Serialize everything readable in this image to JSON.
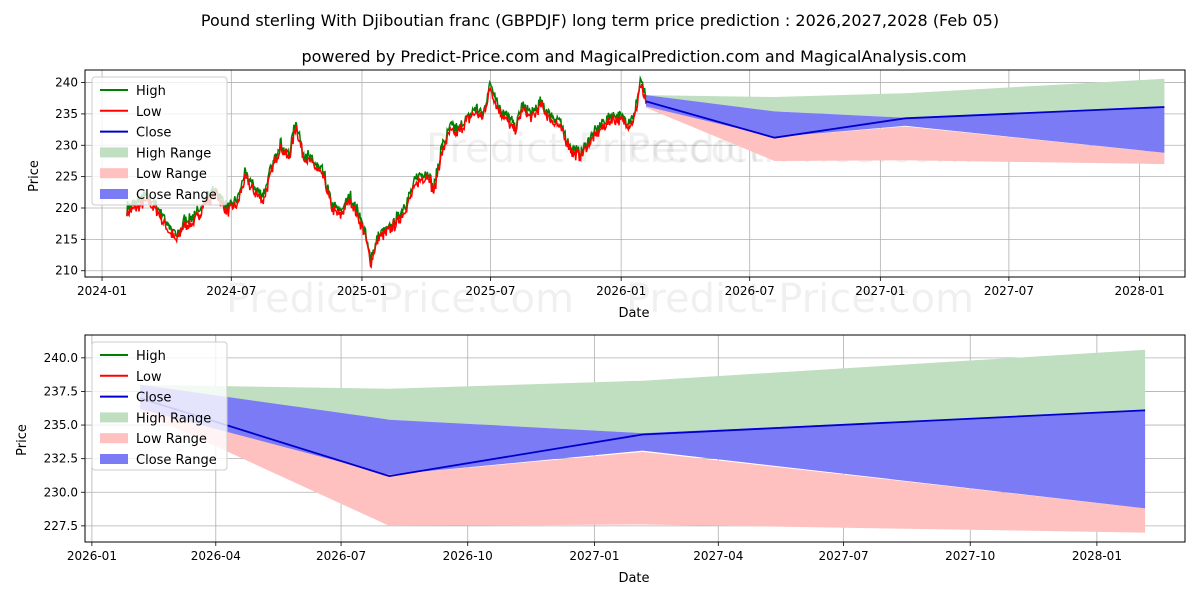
{
  "title": "Pound sterling With Djiboutian franc (GBPDJF) long term price prediction : 2026,2027,2028 (Feb 05)",
  "subtitle": "powered by Predict-Price.com and MagicalPrediction.com and MagicalAnalysis.com",
  "watermark": "Predict-Price.com",
  "colors": {
    "high": "#008000",
    "low": "#ff0000",
    "close": "#0000cc",
    "high_range": "#c0dfc0",
    "low_range": "#ffc0c0",
    "close_range": "#7b7bf5"
  },
  "legend": [
    "High",
    "Low",
    "Close",
    "High Range",
    "Low Range",
    "Close Range"
  ],
  "chart_data": [
    {
      "type": "line",
      "panel": "top",
      "xlabel": "Date",
      "ylabel": "Price",
      "xlim": [
        "2023-12-08",
        "2028-03-05"
      ],
      "ylim": [
        209,
        242
      ],
      "xticks": [
        {
          "date": "2024-01-01",
          "label": "2024-01"
        },
        {
          "date": "2024-07-01",
          "label": "2024-07"
        },
        {
          "date": "2025-01-01",
          "label": "2025-01"
        },
        {
          "date": "2025-07-01",
          "label": "2025-07"
        },
        {
          "date": "2026-01-01",
          "label": "2026-01"
        },
        {
          "date": "2026-07-01",
          "label": "2026-07"
        },
        {
          "date": "2027-01-01",
          "label": "2027-01"
        },
        {
          "date": "2027-07-01",
          "label": "2027-07"
        },
        {
          "date": "2028-01-01",
          "label": "2028-01"
        }
      ],
      "yticks": [
        210,
        215,
        220,
        225,
        230,
        235,
        240
      ],
      "history_anchors": [
        [
          "2024-02-05",
          219.5
        ],
        [
          "2024-02-20",
          220.5
        ],
        [
          "2024-03-05",
          221.5
        ],
        [
          "2024-03-20",
          219.5
        ],
        [
          "2024-04-05",
          216.5
        ],
        [
          "2024-04-15",
          215.0
        ],
        [
          "2024-04-25",
          217.5
        ],
        [
          "2024-05-10",
          218.0
        ],
        [
          "2024-05-25",
          221.0
        ],
        [
          "2024-06-10",
          222.5
        ],
        [
          "2024-06-25",
          219.5
        ],
        [
          "2024-07-10",
          221.0
        ],
        [
          "2024-07-20",
          225.0
        ],
        [
          "2024-08-05",
          222.5
        ],
        [
          "2024-08-15",
          221.5
        ],
        [
          "2024-08-28",
          226.5
        ],
        [
          "2024-09-08",
          230.0
        ],
        [
          "2024-09-20",
          228.0
        ],
        [
          "2024-09-30",
          233.5
        ],
        [
          "2024-10-10",
          228.5
        ],
        [
          "2024-10-25",
          227.0
        ],
        [
          "2024-11-08",
          225.0
        ],
        [
          "2024-11-20",
          220.0
        ],
        [
          "2024-12-01",
          219.0
        ],
        [
          "2024-12-15",
          221.5
        ],
        [
          "2024-12-28",
          218.5
        ],
        [
          "2025-01-05",
          216.0
        ],
        [
          "2025-01-13",
          211.5
        ],
        [
          "2025-01-25",
          215.5
        ],
        [
          "2025-02-08",
          216.5
        ],
        [
          "2025-02-20",
          218.0
        ],
        [
          "2025-03-05",
          220.5
        ],
        [
          "2025-03-20",
          224.5
        ],
        [
          "2025-04-05",
          225.5
        ],
        [
          "2025-04-12",
          222.5
        ],
        [
          "2025-04-22",
          228.5
        ],
        [
          "2025-05-05",
          232.5
        ],
        [
          "2025-05-15",
          232.0
        ],
        [
          "2025-05-28",
          234.0
        ],
        [
          "2025-06-10",
          235.5
        ],
        [
          "2025-06-20",
          234.5
        ],
        [
          "2025-07-01",
          239.5
        ],
        [
          "2025-07-12",
          236.0
        ],
        [
          "2025-07-25",
          234.0
        ],
        [
          "2025-08-05",
          232.5
        ],
        [
          "2025-08-15",
          236.0
        ],
        [
          "2025-08-28",
          234.5
        ],
        [
          "2025-09-10",
          236.5
        ],
        [
          "2025-09-22",
          234.5
        ],
        [
          "2025-10-05",
          233.5
        ],
        [
          "2025-10-15",
          231.0
        ],
        [
          "2025-10-25",
          229.0
        ],
        [
          "2025-11-05",
          228.5
        ],
        [
          "2025-11-20",
          231.0
        ],
        [
          "2025-12-05",
          233.0
        ],
        [
          "2025-12-20",
          234.5
        ],
        [
          "2026-01-05",
          234.0
        ],
        [
          "2026-01-12",
          233.5
        ],
        [
          "2026-01-20",
          234.5
        ],
        [
          "2026-01-28",
          240.0
        ],
        [
          "2026-02-05",
          237.0
        ]
      ],
      "history_noise_seed": 7
    },
    {
      "type": "area",
      "panel": "bottom",
      "xlabel": "Date",
      "ylabel": "Price",
      "xlim": [
        "2025-12-27",
        "2028-03-05"
      ],
      "ylim": [
        226.3,
        241.7
      ],
      "xticks": [
        {
          "date": "2026-01-01",
          "label": "2026-01"
        },
        {
          "date": "2026-04-01",
          "label": "2026-04"
        },
        {
          "date": "2026-07-01",
          "label": "2026-07"
        },
        {
          "date": "2026-10-01",
          "label": "2026-10"
        },
        {
          "date": "2027-01-01",
          "label": "2027-01"
        },
        {
          "date": "2027-04-01",
          "label": "2027-04"
        },
        {
          "date": "2027-07-01",
          "label": "2027-07"
        },
        {
          "date": "2027-10-01",
          "label": "2027-10"
        },
        {
          "date": "2028-01-01",
          "label": "2028-01"
        }
      ],
      "yticks": [
        227.5,
        230.0,
        232.5,
        235.0,
        237.5,
        240.0
      ],
      "ytick_labels": [
        "227.5",
        "230.0",
        "232.5",
        "235.0",
        "237.5",
        "240.0"
      ]
    }
  ],
  "forecast": {
    "dates": [
      "2026-02-05",
      "2026-08-05",
      "2027-02-05",
      "2028-02-05"
    ],
    "close": [
      237.0,
      231.2,
      234.3,
      236.1
    ],
    "high_range": {
      "upper_dates": [
        "2026-02-05",
        "2026-08-05",
        "2027-02-05",
        "2028-02-05"
      ],
      "upper": [
        238.0,
        237.7,
        238.3,
        240.6
      ],
      "lower_dates": [
        "2026-02-05",
        "2026-08-05",
        "2027-02-05",
        "2028-02-05"
      ],
      "lower": [
        237.0,
        235.4,
        234.4,
        236.1
      ]
    },
    "low_range": {
      "upper_dates": [
        "2026-02-05",
        "2026-08-05",
        "2027-02-05",
        "2028-02-05"
      ],
      "upper": [
        236.8,
        231.3,
        233.0,
        228.8
      ],
      "lower_dates": [
        "2026-02-05",
        "2026-08-05",
        "2027-02-05",
        "2028-02-05"
      ],
      "lower": [
        236.0,
        227.5,
        227.6,
        227.0
      ]
    },
    "close_range": {
      "upper_dates": [
        "2026-02-05",
        "2026-08-05",
        "2027-02-05",
        "2028-02-05"
      ],
      "upper": [
        238.0,
        235.4,
        234.4,
        236.1
      ],
      "lower_dates": [
        "2026-02-05",
        "2026-08-05",
        "2027-02-05",
        "2028-02-05"
      ],
      "lower": [
        236.2,
        231.3,
        233.1,
        228.8
      ]
    }
  }
}
